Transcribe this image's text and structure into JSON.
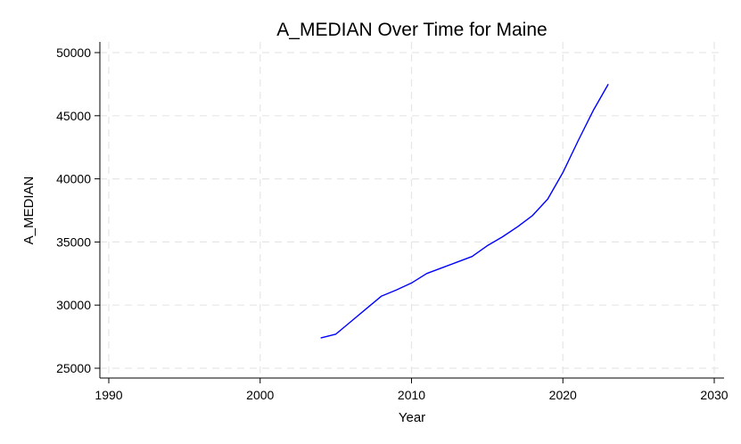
{
  "chart_data": {
    "type": "line",
    "title": "A_MEDIAN Over Time for Maine",
    "xlabel": "Year",
    "ylabel": "A_MEDIAN",
    "xlim": [
      1990,
      2030
    ],
    "ylim": [
      25000,
      50000
    ],
    "xticks": [
      1990,
      2000,
      2010,
      2020,
      2030
    ],
    "yticks": [
      25000,
      30000,
      35000,
      40000,
      45000,
      50000
    ],
    "grid": true,
    "line_color": "#0000ff",
    "series": [
      {
        "x": [
          2004,
          2005,
          2006,
          2007,
          2008,
          2009,
          2010,
          2011,
          2012,
          2013,
          2014,
          2015,
          2016,
          2017,
          2018,
          2019,
          2020,
          2021,
          2022,
          2023
        ],
        "values": [
          27400,
          27700,
          28700,
          29700,
          30700,
          31200,
          31750,
          32500,
          32950,
          33400,
          33850,
          34700,
          35400,
          36200,
          37100,
          38400,
          40500,
          43000,
          45400,
          47500
        ]
      }
    ]
  }
}
